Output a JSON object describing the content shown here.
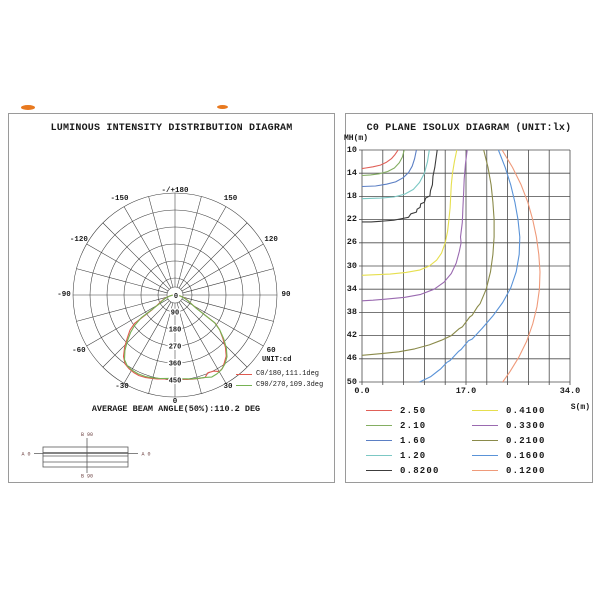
{
  "page": {
    "background": "#ffffff"
  },
  "decor": {
    "artifact_color": "#e8791f"
  },
  "left_panel": {
    "luminaire": {
      "top_label": "B 90",
      "bottom_label": "B 90",
      "left_label": "A 0",
      "right_label": "A 0"
    }
  },
  "chart_data": [
    {
      "type": "polar",
      "title": "LUMINOUS INTENSITY DISTRIBUTION DIAGRAM",
      "unit_label": "UNIT:cd",
      "beam_angle_note": "AVERAGE BEAM ANGLE(50%):110.2 DEG",
      "ring_values": [
        90,
        180,
        270,
        360,
        450
      ],
      "center_label": "0",
      "angle_step_deg": 15,
      "grid_color": "#3a3a3a",
      "angle_labels": [
        {
          "label": "0",
          "angle": 0
        },
        {
          "label": "30",
          "angle": 30
        },
        {
          "label": "60",
          "angle": 60
        },
        {
          "label": "90",
          "angle": 90
        },
        {
          "label": "120",
          "angle": 120
        },
        {
          "label": "150",
          "angle": 150
        },
        {
          "label": "-/+180",
          "angle": 180
        },
        {
          "label": "-150",
          "angle": -150
        },
        {
          "label": "-120",
          "angle": -120
        },
        {
          "label": "-90",
          "angle": -90
        },
        {
          "label": "-60",
          "angle": -60
        },
        {
          "label": "-30",
          "angle": -30
        }
      ],
      "series": [
        {
          "label": "C0/180,111.1deg",
          "color": "#e05a50",
          "points_deg_cd": [
            [
              -90,
              4
            ],
            [
              -85,
              14
            ],
            [
              -80,
              28
            ],
            [
              -75,
              44
            ],
            [
              -70,
              61
            ],
            [
              -65,
              82
            ],
            [
              -60,
              112
            ],
            [
              -57,
              148
            ],
            [
              -55,
              262
            ],
            [
              -52,
              302
            ],
            [
              -48,
              340
            ],
            [
              -44,
              384
            ],
            [
              -40,
              424
            ],
            [
              -36,
              450
            ],
            [
              -32,
              460
            ],
            [
              -28,
              465
            ],
            [
              -24,
              467
            ],
            [
              -20,
              464
            ],
            [
              -16,
              459
            ],
            [
              -12,
              454
            ],
            [
              -8,
              449
            ],
            [
              -4,
              446
            ],
            [
              0,
              445
            ],
            [
              4,
              447
            ],
            [
              8,
              451
            ],
            [
              12,
              455
            ],
            [
              16,
              460
            ],
            [
              20,
              465
            ],
            [
              23,
              447
            ],
            [
              27,
              452
            ],
            [
              30,
              468
            ],
            [
              33,
              462
            ],
            [
              36,
              444
            ],
            [
              40,
              422
            ],
            [
              44,
              384
            ],
            [
              48,
              340
            ],
            [
              52,
              300
            ],
            [
              55,
              262
            ],
            [
              58,
              140
            ],
            [
              60,
              112
            ],
            [
              65,
              82
            ],
            [
              70,
              61
            ],
            [
              75,
              44
            ],
            [
              80,
              28
            ],
            [
              85,
              14
            ],
            [
              90,
              4
            ]
          ]
        },
        {
          "label": "C90/270,109.3deg",
          "color": "#76b254",
          "points_deg_cd": [
            [
              -90,
              3
            ],
            [
              -85,
              12
            ],
            [
              -80,
              25
            ],
            [
              -75,
              40
            ],
            [
              -70,
              56
            ],
            [
              -65,
              76
            ],
            [
              -60,
              100
            ],
            [
              -56,
              215
            ],
            [
              -53,
              268
            ],
            [
              -50,
              306
            ],
            [
              -46,
              350
            ],
            [
              -42,
              396
            ],
            [
              -38,
              434
            ],
            [
              -34,
              452
            ],
            [
              -30,
              458
            ],
            [
              -25,
              461
            ],
            [
              -20,
              459
            ],
            [
              -15,
              454
            ],
            [
              -10,
              449
            ],
            [
              -5,
              443
            ],
            [
              0,
              441
            ],
            [
              5,
              445
            ],
            [
              10,
              451
            ],
            [
              15,
              457
            ],
            [
              20,
              464
            ],
            [
              24,
              476
            ],
            [
              28,
              473
            ],
            [
              32,
              466
            ],
            [
              36,
              450
            ],
            [
              40,
              428
            ],
            [
              44,
              392
            ],
            [
              48,
              348
            ],
            [
              52,
              300
            ],
            [
              55,
              256
            ],
            [
              58,
              132
            ],
            [
              62,
              96
            ],
            [
              66,
              74
            ],
            [
              70,
              56
            ],
            [
              75,
              40
            ],
            [
              80,
              25
            ],
            [
              85,
              12
            ],
            [
              90,
              3
            ]
          ]
        }
      ]
    },
    {
      "type": "line",
      "title": "C0 PLANE ISOLUX DIAGRAM (UNIT:lx)",
      "x_axis_label": "S(m)",
      "y_axis_label": "MH(m)",
      "x_range": [
        0,
        34
      ],
      "y_range": [
        10,
        50
      ],
      "grid": {
        "cols": 10,
        "rows": 10,
        "color": "#4a4a4a"
      },
      "x_ticks": [
        {
          "label": "0.0",
          "s": 0
        },
        {
          "label": "17.0",
          "s": 17
        },
        {
          "label": "34.0",
          "s": 34
        }
      ],
      "y_ticks": [
        10,
        14,
        18,
        22,
        26,
        30,
        34,
        38,
        42,
        46,
        50
      ],
      "series": [
        {
          "label": "2.50",
          "color": "#e06058",
          "points_s_h": [
            [
              5.9,
              10
            ],
            [
              5.4,
              10.8
            ],
            [
              4.8,
              11.5
            ],
            [
              4.0,
              12.1
            ],
            [
              3.0,
              12.6
            ],
            [
              1.8,
              12.9
            ],
            [
              0.6,
              13.1
            ],
            [
              0,
              13.2
            ]
          ]
        },
        {
          "label": "2.10",
          "color": "#84ae62",
          "points_s_h": [
            [
              6.9,
              10
            ],
            [
              6.6,
              11.2
            ],
            [
              6.1,
              12.2
            ],
            [
              5.3,
              13.1
            ],
            [
              4.2,
              13.7
            ],
            [
              2.8,
              14.1
            ],
            [
              1.4,
              14.3
            ],
            [
              0,
              14.4
            ]
          ]
        },
        {
          "label": "1.60",
          "color": "#5b7fc4",
          "points_s_h": [
            [
              8.9,
              10
            ],
            [
              8.6,
              11.5
            ],
            [
              8.2,
              12.8
            ],
            [
              7.6,
              13.9
            ],
            [
              6.7,
              14.8
            ],
            [
              5.5,
              15.5
            ],
            [
              4.0,
              15.9
            ],
            [
              2.2,
              16.2
            ],
            [
              0,
              16.3
            ]
          ]
        },
        {
          "label": "1.20",
          "color": "#7cc8c4",
          "points_s_h": [
            [
              11.0,
              10
            ],
            [
              10.7,
              12
            ],
            [
              10.2,
              14
            ],
            [
              9.4,
              15.6
            ],
            [
              8.4,
              16.8
            ],
            [
              7.0,
              17.6
            ],
            [
              5.2,
              18.1
            ],
            [
              3.0,
              18.3
            ],
            [
              0,
              18.4
            ]
          ]
        },
        {
          "label": "0.8200",
          "color": "#3c3c3c",
          "points_s_h": [
            [
              12.3,
              10
            ],
            [
              12.1,
              11.5
            ],
            [
              11.9,
              13
            ],
            [
              11.6,
              14.5
            ],
            [
              11.5,
              16
            ],
            [
              11.2,
              17
            ],
            [
              11.1,
              17.9
            ],
            [
              10.4,
              18.3
            ],
            [
              10.2,
              19.0
            ],
            [
              9.6,
              19.3
            ],
            [
              9.5,
              19.9
            ],
            [
              9.0,
              20.2
            ],
            [
              8.9,
              20.7
            ],
            [
              8.0,
              21.0
            ],
            [
              7.6,
              21.6
            ],
            [
              6.2,
              21.9
            ],
            [
              5.2,
              22.1
            ],
            [
              3.0,
              22.3
            ],
            [
              1.5,
              22.4
            ],
            [
              0,
              22.4
            ]
          ]
        },
        {
          "label": "0.4100",
          "color": "#e6df4e",
          "points_s_h": [
            [
              15.5,
              10
            ],
            [
              15.1,
              12
            ],
            [
              14.8,
              14
            ],
            [
              14.6,
              16
            ],
            [
              14.5,
              18
            ],
            [
              14.4,
              20
            ],
            [
              14.2,
              22
            ],
            [
              14.0,
              24
            ],
            [
              13.6,
              26
            ],
            [
              13.0,
              27.8
            ],
            [
              12.2,
              29.0
            ],
            [
              11.0,
              30.0
            ],
            [
              9.4,
              30.7
            ],
            [
              7.2,
              31.1
            ],
            [
              4.6,
              31.4
            ],
            [
              2.2,
              31.5
            ],
            [
              0,
              31.6
            ]
          ]
        },
        {
          "label": "0.3300",
          "color": "#9a6ab0",
          "points_s_h": [
            [
              17.2,
              10
            ],
            [
              16.9,
              12.5
            ],
            [
              16.7,
              15
            ],
            [
              16.6,
              17.5
            ],
            [
              16.5,
              20
            ],
            [
              16.4,
              22.5
            ],
            [
              16.1,
              25
            ],
            [
              16.2,
              26
            ],
            [
              15.9,
              27.5
            ],
            [
              15.4,
              29.5
            ],
            [
              14.6,
              31.3
            ],
            [
              13.4,
              32.8
            ],
            [
              11.8,
              34.0
            ],
            [
              9.6,
              34.9
            ],
            [
              7.0,
              35.4
            ],
            [
              4.0,
              35.7
            ],
            [
              1.8,
              35.9
            ],
            [
              0,
              36.0
            ]
          ]
        },
        {
          "label": "0.2100",
          "color": "#8a8a4a",
          "points_s_h": [
            [
              19.9,
              10
            ],
            [
              20.6,
              13
            ],
            [
              21.1,
              16
            ],
            [
              21.4,
              19
            ],
            [
              21.6,
              22
            ],
            [
              21.6,
              25
            ],
            [
              21.4,
              28
            ],
            [
              21.0,
              31
            ],
            [
              20.3,
              34
            ],
            [
              19.3,
              36.5
            ],
            [
              18.9,
              37.0
            ],
            [
              18.0,
              38.5
            ],
            [
              17.6,
              38.8
            ],
            [
              16.4,
              40.5
            ],
            [
              15.9,
              40.8
            ],
            [
              14.6,
              42.0
            ],
            [
              13.0,
              42.8
            ],
            [
              11.0,
              43.6
            ],
            [
              8.6,
              44.3
            ],
            [
              6.0,
              44.8
            ],
            [
              3.2,
              45.1
            ],
            [
              1.2,
              45.3
            ],
            [
              0,
              45.4
            ]
          ]
        },
        {
          "label": "0.1600",
          "color": "#5a93d8",
          "points_s_h": [
            [
              22.3,
              10
            ],
            [
              23.4,
              13
            ],
            [
              24.3,
              16
            ],
            [
              25.0,
              19
            ],
            [
              25.5,
              22
            ],
            [
              25.8,
              25
            ],
            [
              25.7,
              28
            ],
            [
              25.2,
              31
            ],
            [
              24.3,
              33.8
            ],
            [
              23.0,
              36.3
            ],
            [
              21.4,
              38.6
            ],
            [
              19.6,
              40.8
            ],
            [
              18.0,
              42.6
            ],
            [
              17.4,
              42.9
            ],
            [
              16.2,
              44.4
            ],
            [
              15.8,
              44.7
            ],
            [
              14.4,
              46.3
            ],
            [
              13.9,
              46.6
            ],
            [
              12.8,
              47.8
            ],
            [
              12.4,
              48.1
            ],
            [
              11.2,
              49.1
            ],
            [
              10.4,
              49.5
            ],
            [
              9.4,
              50
            ]
          ]
        },
        {
          "label": "0.1200",
          "color": "#ef9a7a",
          "points_s_h": [
            [
              22.9,
              10
            ],
            [
              24.6,
              13
            ],
            [
              26.0,
              16
            ],
            [
              27.1,
              19
            ],
            [
              27.9,
              22
            ],
            [
              28.5,
              25
            ],
            [
              28.9,
              28
            ],
            [
              29.1,
              31
            ],
            [
              29.0,
              34
            ],
            [
              28.6,
              37
            ],
            [
              27.9,
              40
            ],
            [
              26.9,
              43
            ],
            [
              25.6,
              45.8
            ],
            [
              24.2,
              48.2
            ],
            [
              23.0,
              50
            ]
          ]
        }
      ]
    }
  ]
}
